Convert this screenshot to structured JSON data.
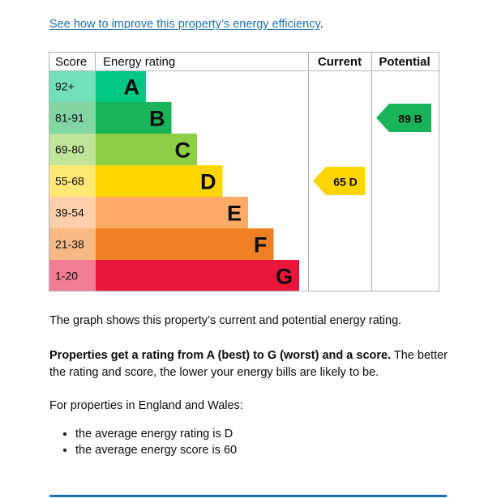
{
  "link": {
    "text": "See how to improve this property’s energy efficiency",
    "suffix": "."
  },
  "chart_data": {
    "type": "bar",
    "headers": {
      "score": "Score",
      "rating": "Energy rating",
      "current": "Current",
      "potential": "Potential"
    },
    "bands": [
      {
        "score": "92+",
        "letter": "A",
        "level": 1,
        "color": "#00c781"
      },
      {
        "score": "81-91",
        "letter": "B",
        "level": 2,
        "color": "#19b459"
      },
      {
        "score": "69-80",
        "letter": "C",
        "level": 3,
        "color": "#8dce46"
      },
      {
        "score": "55-68",
        "letter": "D",
        "level": 4,
        "color": "#ffd500"
      },
      {
        "score": "39-54",
        "letter": "E",
        "level": 5,
        "color": "#fcaa65"
      },
      {
        "score": "21-38",
        "letter": "F",
        "level": 6,
        "color": "#ef8023"
      },
      {
        "score": "1-20",
        "letter": "G",
        "level": 7,
        "color": "#e9153b"
      }
    ],
    "current": {
      "score": 65,
      "letter": "D",
      "label": "65 D",
      "color": "#ffd500"
    },
    "potential": {
      "score": 89,
      "letter": "B",
      "label": "89 B",
      "color": "#19b459"
    }
  },
  "text": {
    "graph_description": "The graph shows this property’s current and potential energy rating.",
    "rating_bold": "Properties get a rating from A (best) to G (worst) and a score.",
    "rating_rest": " The better the rating and score, the lower your energy bills are likely to be.",
    "region_intro": "For properties in England and Wales:",
    "bullets": [
      "the average energy rating is D",
      "the average energy score is 60"
    ]
  }
}
